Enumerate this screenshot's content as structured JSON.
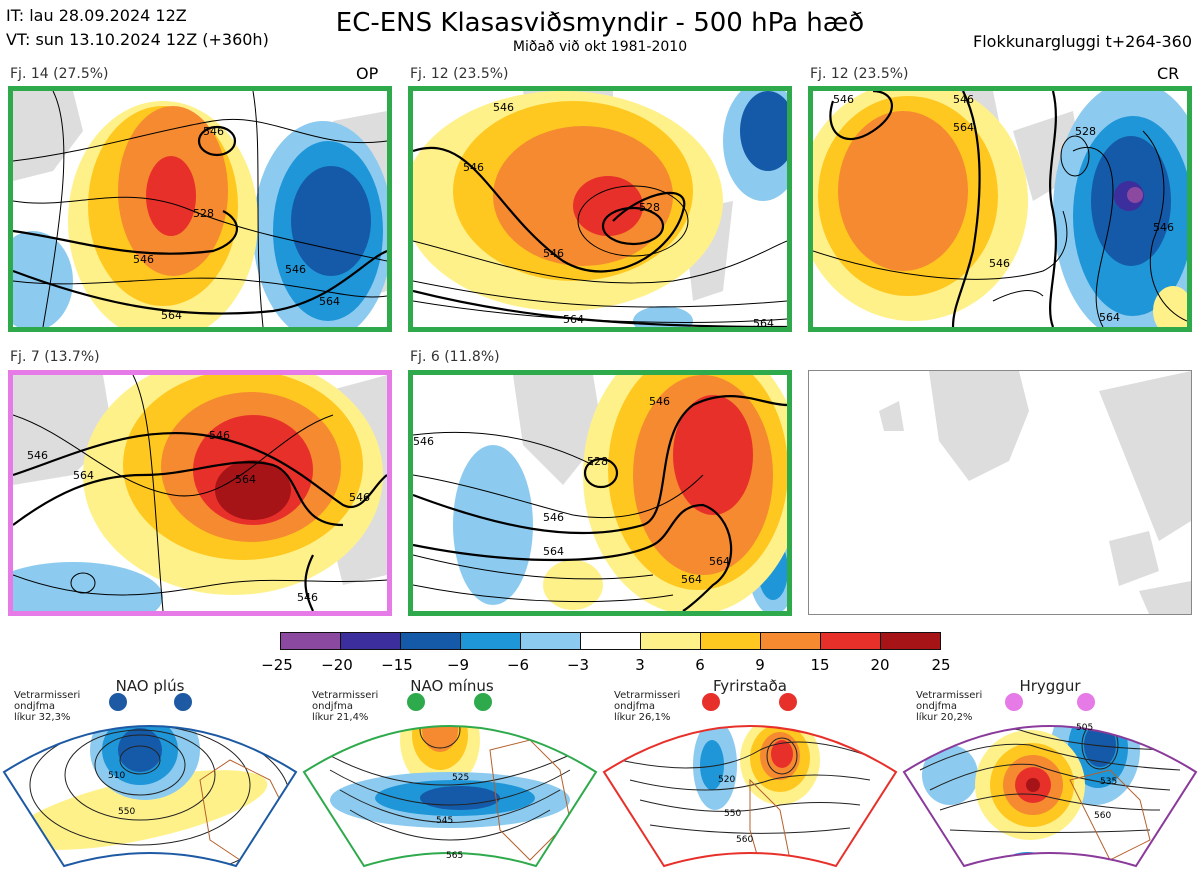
{
  "header": {
    "it_line": "IT: lau 28.09.2024 12Z",
    "vt_line": "VT: sun 13.10.2024 12Z  (+360h)",
    "title": "EC-ENS Klasasviðsmyndir - 500 hPa hæð",
    "subtitle": "Miðað við okt 1981-2010",
    "window": "Flokkunargluggi t+264-360"
  },
  "panels": [
    {
      "label": "Fj. 14 (27.5%)",
      "tag": "OP",
      "border": "#2eaa4c",
      "contours": [
        "528",
        "546",
        "546",
        "564",
        "546",
        "564"
      ]
    },
    {
      "label": "Fj. 12 (23.5%)",
      "tag": "",
      "border": "#2eaa4c",
      "contours": [
        "546",
        "546",
        "528",
        "546",
        "564",
        "564"
      ]
    },
    {
      "label": "Fj. 12 (23.5%)",
      "tag": "CR",
      "border": "#2eaa4c",
      "contours": [
        "546",
        "564",
        "528",
        "546",
        "546",
        "546",
        "564"
      ]
    },
    {
      "label": "Fj. 7 (13.7%)",
      "tag": "",
      "border": "#e67ae6",
      "contours": [
        "546",
        "564",
        "546",
        "564",
        "546",
        "546"
      ]
    },
    {
      "label": "Fj. 6 (11.8%)",
      "tag": "",
      "border": "#2eaa4c",
      "contours": [
        "546",
        "528",
        "546",
        "564",
        "546",
        "564",
        "564"
      ]
    }
  ],
  "colorbar": {
    "ticks": [
      "−25",
      "−20",
      "−15",
      "−9",
      "−6",
      "−3",
      "3",
      "6",
      "9",
      "15",
      "20",
      "25"
    ],
    "colors": [
      "#8b4aa0",
      "#3d2e9e",
      "#155aa8",
      "#1f96d8",
      "#8ccbef",
      "#ffffff",
      "#fff18a",
      "#ffc820",
      "#f58a30",
      "#e8302a",
      "#a71418"
    ]
  },
  "regimes": [
    {
      "name": "NAO plús",
      "note": "Vetrarmisseri\nondjfma\nlíkur 32,3%",
      "color": "#1d5aa3",
      "contours": [
        "510",
        "550"
      ]
    },
    {
      "name": "NAO mínus",
      "note": "Vetrarmisseri\nondjfma\nlíkur 21,4%",
      "color": "#2eaa4c",
      "contours": [
        "525",
        "545",
        "565"
      ]
    },
    {
      "name": "Fyrirstaða",
      "note": "Vetrarmisseri\nondjfma\nlíkur 26,1%",
      "color": "#e8302a",
      "contours": [
        "520",
        "550",
        "560"
      ]
    },
    {
      "name": "Hryggur",
      "note": "Vetrarmisseri\nondjfma\nlíkur 20,2%",
      "color": "#e67ae6",
      "contours": [
        "505",
        "535",
        "560"
      ]
    }
  ]
}
